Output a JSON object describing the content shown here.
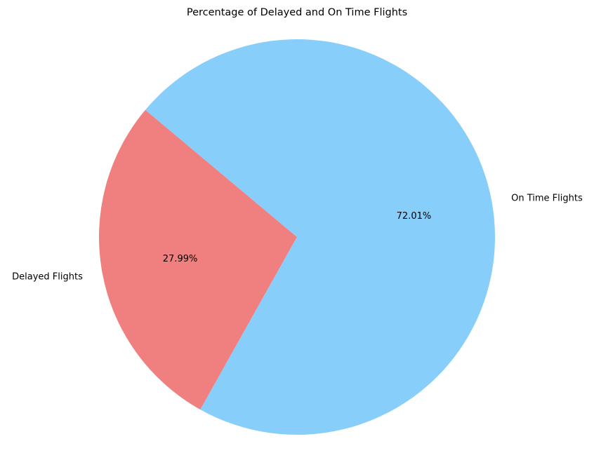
{
  "chart_data": {
    "type": "pie",
    "title": "Percentage of Delayed and On Time Flights",
    "start_angle_deg": 140,
    "direction": "counterclockwise",
    "slices": [
      {
        "label": "Delayed Flights",
        "value": 27.99,
        "pct_label": "27.99%",
        "color": "#F08080"
      },
      {
        "label": "On Time Flights",
        "value": 72.01,
        "pct_label": "72.01%",
        "color": "#87CEFA"
      }
    ]
  }
}
